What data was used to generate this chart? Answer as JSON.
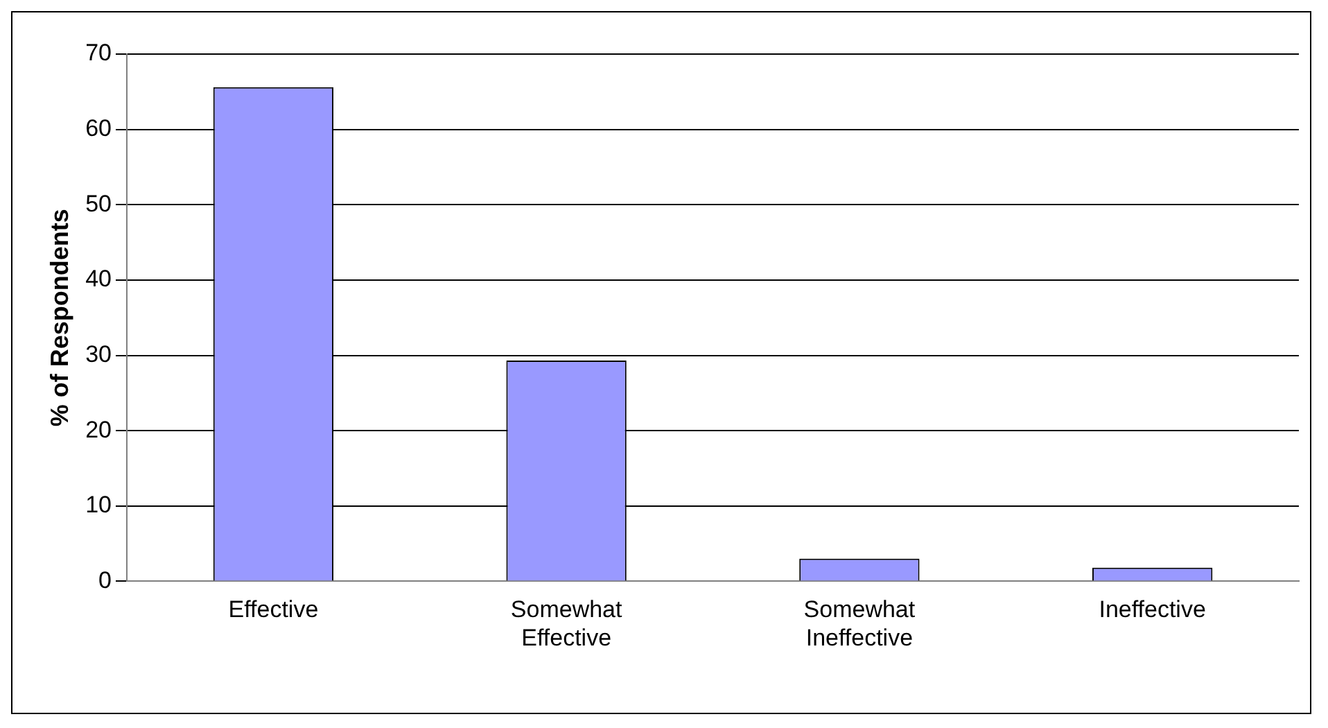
{
  "chart_data": {
    "type": "bar",
    "ylabel": "% of Respondents",
    "categories": [
      "Effective",
      "Somewhat Effective",
      "Somewhat Ineffective",
      "Ineffective"
    ],
    "values": [
      65.6,
      29.3,
      3.0,
      1.8
    ],
    "color": "#9999ff",
    "ylim": [
      0,
      70
    ],
    "yticks": [
      0,
      10,
      20,
      30,
      40,
      50,
      60,
      70
    ],
    "grid": "y",
    "legend": false
  }
}
